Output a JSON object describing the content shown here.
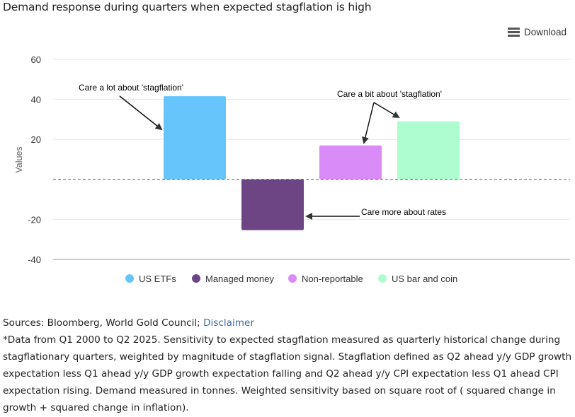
{
  "header": {
    "title": "Demand response during quarters when expected stagflation is high",
    "download_label": "Download",
    "download_icon": "hamburger-menu-icon"
  },
  "chart_data": {
    "type": "bar",
    "title": "Demand response during quarters when expected stagflation is high",
    "xlabel": "",
    "ylabel": "Values",
    "ylim": [
      -40,
      60
    ],
    "yticks": [
      60,
      40,
      20,
      -20,
      -40
    ],
    "grid": true,
    "zero_line": "dashed",
    "legend_position": "bottom",
    "series": [
      {
        "name": "US ETFs",
        "value": 41.6,
        "color": "#66c5fa"
      },
      {
        "name": "Managed money",
        "value": -25.4,
        "color": "#6e4584"
      },
      {
        "name": "Non-reportable",
        "value": 17,
        "color": "#d98cf7"
      },
      {
        "name": "US bar and coin",
        "value": 29,
        "color": "#aefdd0"
      }
    ],
    "annotations": [
      {
        "text": "Care a lot about 'stagflation'",
        "points_to": [
          "US ETFs"
        ]
      },
      {
        "text": "Care a bit about 'stagflation'",
        "points_to": [
          "Non-reportable",
          "US bar and coin"
        ]
      },
      {
        "text": "Care more about rates",
        "points_to": [
          "Managed money"
        ]
      }
    ]
  },
  "footer": {
    "sources": "Sources: Bloomberg, World Gold Council; ",
    "disclaimer_link": "Disclaimer",
    "note": "*Data from Q1 2000 to Q2 2025.  Sensitivity to expected stagflation measured as quarterly historical change during stagflationary quarters, weighted by magnitude of stagflation signal. Stagflation defined as Q2 ahead y/y GDP growth expectation less Q1 ahead y/y GDP growth expectation falling and Q2 ahead y/y CPI expectation less Q1 ahead CPI expectation rising. Demand measured in tonnes. Weighted sensitivity based on square root of ( squared change in growth + squared change in inflation)."
  },
  "colors": {
    "link": "#3d6e99",
    "grid": "#e6e6e6"
  }
}
